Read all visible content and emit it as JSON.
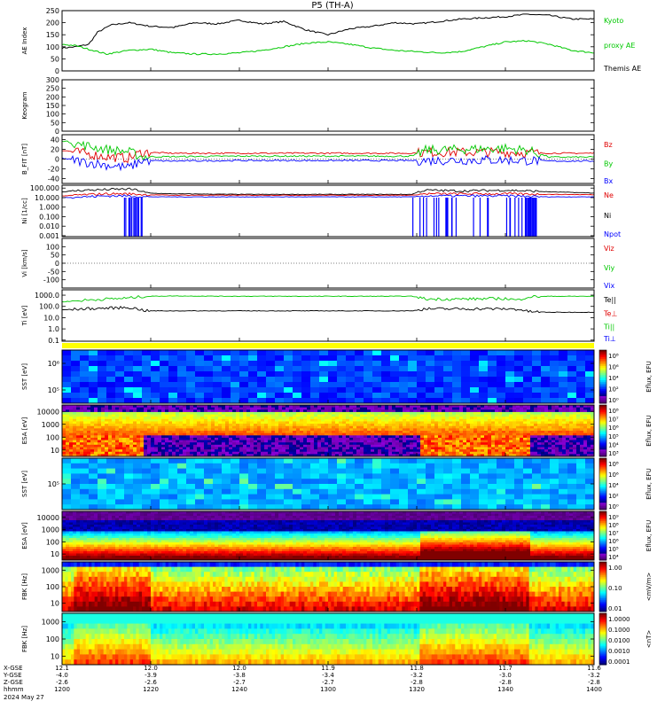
{
  "title": "P5 (TH-A)",
  "date_label": "2024 May 27",
  "footer_labels": [
    "X-GSE",
    "Y-GSE",
    "Z-GSE",
    "hhmm"
  ],
  "x_ticks": [
    "1200",
    "1220",
    "1240",
    "1300",
    "1320",
    "1340",
    "1400"
  ],
  "footer_rows": [
    [
      "12.1",
      "12.0",
      "12.0",
      "11.9",
      "11.8",
      "11.7",
      "11.6"
    ],
    [
      "-4.0",
      "-3.9",
      "-3.8",
      "-3.4",
      "-3.2",
      "-3.0",
      "-3.2"
    ],
    [
      "-2.6",
      "-2.6",
      "-2.7",
      "-2.7",
      "-2.8",
      "-2.8",
      "-2.8"
    ]
  ],
  "colors": {
    "black": "#000000",
    "red": "#e00000",
    "green": "#00c800",
    "blue": "#0000ff",
    "yellow": "#ffff00"
  },
  "chart_data": [
    {
      "type": "line",
      "ylabel": "AE Index",
      "ylim": [
        0,
        250
      ],
      "yticks": [
        "250",
        "200",
        "150",
        "100",
        "50",
        "0"
      ],
      "legend": [
        {
          "name": "Kyoto",
          "color": "#00c800"
        },
        {
          "name": "proxy AE",
          "color": "#00c800"
        },
        {
          "name": "Themis AE",
          "color": "#000000"
        }
      ],
      "series": [
        {
          "name": "Themis AE",
          "color": "#000000",
          "x": [
            1200,
            1203,
            1206,
            1208,
            1211,
            1215,
            1220,
            1225,
            1230,
            1235,
            1240,
            1245,
            1250,
            1255,
            1300,
            1305,
            1310,
            1315,
            1320,
            1325,
            1330,
            1335,
            1340,
            1345,
            1350,
            1355,
            1400
          ],
          "y": [
            95,
            100,
            110,
            160,
            190,
            200,
            185,
            180,
            200,
            195,
            210,
            195,
            205,
            170,
            150,
            175,
            185,
            200,
            195,
            205,
            215,
            220,
            225,
            235,
            230,
            215,
            215
          ]
        },
        {
          "name": "Kyoto proxy AE",
          "color": "#00c800",
          "x": [
            1200,
            1203,
            1206,
            1210,
            1215,
            1220,
            1225,
            1230,
            1235,
            1240,
            1245,
            1250,
            1255,
            1300,
            1305,
            1310,
            1315,
            1320,
            1325,
            1330,
            1335,
            1340,
            1345,
            1350,
            1355,
            1400
          ],
          "y": [
            110,
            105,
            90,
            70,
            85,
            90,
            75,
            70,
            70,
            75,
            85,
            100,
            115,
            120,
            110,
            95,
            85,
            80,
            75,
            80,
            100,
            120,
            125,
            110,
            85,
            75
          ]
        }
      ]
    },
    {
      "type": "line",
      "ylabel": "Keogram",
      "ylim": [
        0,
        300
      ],
      "yticks": [
        "300",
        "250",
        "200",
        "150",
        "100",
        "50",
        "0"
      ],
      "series": []
    },
    {
      "type": "line",
      "ylabel": "B_FIT [nT]",
      "ylim": [
        -50,
        50
      ],
      "yticks": [
        "40",
        "20",
        "0",
        "-20",
        "-40"
      ],
      "legend": [
        {
          "name": "Bz",
          "color": "#e00000"
        },
        {
          "name": "By",
          "color": "#00c800"
        },
        {
          "name": "Bx",
          "color": "#0000ff"
        }
      ],
      "series": [
        {
          "name": "Bz",
          "color": "#e00000",
          "x": [
            1200,
            1205,
            1210,
            1215,
            1218,
            1225,
            1240,
            1300,
            1310,
            1319,
            1322,
            1330,
            1340,
            1345,
            1350,
            1400
          ],
          "y": [
            18,
            12,
            5,
            2,
            14,
            12,
            12,
            12,
            12,
            12,
            14,
            14,
            14,
            13,
            12,
            12
          ]
        },
        {
          "name": "By",
          "color": "#00c800",
          "x": [
            1200,
            1205,
            1210,
            1215,
            1218,
            1225,
            1240,
            1300,
            1310,
            1319,
            1322,
            1330,
            1340,
            1345,
            1350,
            1400
          ],
          "y": [
            38,
            28,
            20,
            15,
            5,
            5,
            6,
            6,
            6,
            6,
            18,
            20,
            22,
            18,
            4,
            4
          ]
        },
        {
          "name": "Bx",
          "color": "#0000ff",
          "x": [
            1200,
            1205,
            1210,
            1215,
            1218,
            1225,
            1240,
            1300,
            1310,
            1319,
            1322,
            1330,
            1340,
            1345,
            1350,
            1400
          ],
          "y": [
            2,
            -6,
            -12,
            -18,
            -3,
            -4,
            -3,
            -3,
            -3,
            -3,
            -3,
            -2,
            -2,
            -3,
            -4,
            -4
          ]
        }
      ]
    },
    {
      "type": "line",
      "ylabel": "Ni [1/cc]",
      "yscale": "log",
      "ylim": [
        0.0008,
        200
      ],
      "yticks": [
        "100.000",
        "10.000",
        "1.000",
        "0.100",
        "0.010",
        "0.001"
      ],
      "legend": [
        {
          "name": "Ne",
          "color": "#e00000"
        },
        {
          "name": "Ni",
          "color": "#000000"
        },
        {
          "name": "Npot",
          "color": "#0000ff"
        }
      ],
      "series": [
        {
          "name": "Ni",
          "color": "#000000",
          "x": [
            1200,
            1205,
            1210,
            1215,
            1217,
            1219,
            1225,
            1240,
            1300,
            1310,
            1319,
            1322,
            1330,
            1340,
            1350,
            1400
          ],
          "y": [
            40,
            60,
            70,
            80,
            60,
            30,
            25,
            22,
            22,
            22,
            22,
            60,
            50,
            60,
            40,
            30
          ]
        },
        {
          "name": "Ne",
          "color": "#e00000",
          "x": [
            1200,
            1205,
            1210,
            1215,
            1219,
            1225,
            1240,
            1300,
            1310,
            1319,
            1322,
            1330,
            1340,
            1350,
            1400
          ],
          "y": [
            15,
            20,
            25,
            25,
            20,
            18,
            18,
            18,
            18,
            18,
            25,
            25,
            25,
            22,
            20
          ]
        },
        {
          "name": "Npot",
          "color": "#0000ff",
          "x": [
            1200,
            1205,
            1210,
            1215,
            1219,
            1225,
            1240,
            1300,
            1310,
            1319,
            1322,
            1330,
            1340,
            1350,
            1400
          ],
          "y": [
            10,
            12,
            15,
            15,
            12,
            12,
            12,
            12,
            12,
            12,
            15,
            15,
            15,
            12,
            12
          ]
        }
      ]
    },
    {
      "type": "line",
      "ylabel": "Vi [km/s]",
      "ylim": [
        -150,
        150
      ],
      "yticks": [
        "100",
        "50",
        "0",
        "-50",
        "-100"
      ],
      "legend": [
        {
          "name": "Viz",
          "color": "#e00000"
        },
        {
          "name": "Viy",
          "color": "#00c800"
        },
        {
          "name": "Vix",
          "color": "#0000ff"
        }
      ],
      "series": []
    },
    {
      "type": "line",
      "ylabel": "Ti [eV]",
      "yscale": "log",
      "ylim": [
        0.08,
        3000
      ],
      "yticks": [
        "1000.0",
        "100.0",
        "10.0",
        "1.0",
        "0.1"
      ],
      "legend": [
        {
          "name": "Te||",
          "color": "#000000"
        },
        {
          "name": "Te⊥",
          "color": "#e00000"
        },
        {
          "name": "Ti||",
          "color": "#00c800"
        },
        {
          "name": "Ti⊥",
          "color": "#0000ff"
        }
      ],
      "series": [
        {
          "name": "Ti||",
          "color": "#00c800",
          "x": [
            1200,
            1205,
            1210,
            1215,
            1219,
            1225,
            1240,
            1300,
            1310,
            1319,
            1322,
            1330,
            1340,
            1343,
            1345,
            1350,
            1400
          ],
          "y": [
            250,
            350,
            450,
            550,
            800,
            850,
            800,
            800,
            800,
            800,
            450,
            450,
            500,
            350,
            700,
            800,
            800
          ]
        },
        {
          "name": "Te||",
          "color": "#000000",
          "x": [
            1200,
            1205,
            1210,
            1215,
            1219,
            1225,
            1240,
            1300,
            1310,
            1319,
            1322,
            1330,
            1340,
            1343,
            1345,
            1350,
            1400
          ],
          "y": [
            50,
            60,
            70,
            80,
            40,
            40,
            40,
            40,
            40,
            40,
            60,
            60,
            60,
            55,
            35,
            30,
            30
          ]
        }
      ]
    },
    {
      "type": "heatmap",
      "ylabel": "SST [eV]",
      "yticks": [
        "10⁶",
        "10⁵"
      ],
      "colorbar_label": "Eflux, EFU",
      "colorbar_ticks": [
        "10⁸",
        "10⁶",
        "10⁴",
        "10²",
        "10⁰"
      ]
    },
    {
      "type": "heatmap",
      "ylabel": "ESA [eV]",
      "yticks": [
        "10000",
        "1000",
        "100",
        "10"
      ],
      "colorbar_label": "Eflux, EFU",
      "colorbar_ticks": [
        "10⁸",
        "10⁷",
        "10⁶",
        "10⁵",
        "10⁴",
        "10³"
      ]
    },
    {
      "type": "heatmap",
      "ylabel": "SST [eV]",
      "yticks": [
        "10⁵"
      ],
      "colorbar_label": "Eflux, EFU",
      "colorbar_ticks": [
        "10⁸",
        "10⁶",
        "10⁴",
        "10²",
        "10⁰"
      ]
    },
    {
      "type": "heatmap",
      "ylabel": "ESA [eV]",
      "yticks": [
        "10000",
        "1000",
        "100",
        "10"
      ],
      "colorbar_label": "Eflux, EFU",
      "colorbar_ticks": [
        "10⁹",
        "10⁸",
        "10⁷",
        "10⁶",
        "10⁵",
        "10⁴"
      ]
    },
    {
      "type": "heatmap",
      "ylabel": "FBK [Hz]",
      "yticks": [
        "1000",
        "100",
        "10"
      ],
      "colorbar_label": "<mV/m>",
      "colorbar_ticks": [
        "1.00",
        "0.10",
        "0.01"
      ]
    },
    {
      "type": "heatmap",
      "ylabel": "FBK [Hz]",
      "yticks": [
        "1000",
        "100",
        "10"
      ],
      "colorbar_label": "<nT>",
      "colorbar_ticks": [
        "1.0000",
        "0.1000",
        "0.0100",
        "0.0010",
        "0.0001"
      ]
    }
  ]
}
